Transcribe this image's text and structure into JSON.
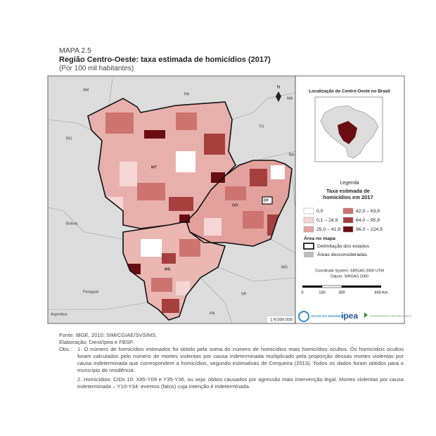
{
  "header": {
    "label": "MAPA 2.5",
    "title": "Região Centro-Oeste: taxa estimada de homicídios (2017)",
    "subtitle": "(Por 100 mil habitantes)"
  },
  "map": {
    "labels": [
      "AM",
      "PA",
      "MA",
      "RO",
      "TO",
      "BA",
      "MT",
      "GO",
      "DF",
      "MS",
      "Bolivia",
      "Paraguai",
      "SP",
      "PR",
      "MG",
      "Argentina"
    ],
    "north": "N",
    "scale": "1:9.000.000"
  },
  "inset": {
    "title": "Localização do Centro-Oeste no Brasil"
  },
  "legend": {
    "title": "Legenda",
    "subtitle": "Taxa estimada de homicídios em 2017",
    "classes": [
      {
        "label": "0,0",
        "color": "#ffffff"
      },
      {
        "label": "0,1 – 24,9",
        "color": "#f6d6d4"
      },
      {
        "label": "25,0 – 41,9",
        "color": "#e6a6a3"
      },
      {
        "label": "42,0 – 63,9",
        "color": "#cd7370"
      },
      {
        "label": "64,0 – 95,9",
        "color": "#a6403f"
      },
      {
        "label": "96,0 – 224,9",
        "color": "#6a0d12"
      }
    ],
    "area_title": "Área no mapa",
    "state_border": "Delimitação dos estados",
    "excluded": "Áreas desconsideradas"
  },
  "projection": {
    "coordinate_system": "Coordinate System: SIRGAS 2000 UTM",
    "datum": "Datum: SIRGAS 2000"
  },
  "scale_bar": [
    "0",
    "150",
    "300",
    "600 Km"
  ],
  "logos": [
    "ATLAS DA VIOLÊNCIA",
    "ipea",
    "FÓRUM BRASILEIRO DE SEGURANÇA PÚBLICA"
  ],
  "footer": {
    "source": "Fonte: IBGE, 2010; SIM/CGIAE/SVS/MS.",
    "credits": "Elaboração: Diest/Ipea e FBSP.",
    "obs_label": "Obs.:",
    "notes": [
      "1. O número de homicídios estimados foi obtido pela soma do número de homicídios mais homicídios ocultos. Os homicídios ocultos foram calculados pelo número de mortes violentas por causa indeterminada multiplicado pela proporção dessas mortes violentas por causa indeterminada que correspondem a homicídios, segundo estimativas de Cerqueira (2013). Todos os dados foram obtidos para o município de residência.",
      "2. Homicídios: CIDs 10: X85-Y09 e Y35-Y36, ou seja: óbitos causados por agressão mais intervenção legal. Mortes violentas por causa indeterminada – Y10-Y34: eventos (fatos) cuja intenção é indeterminada."
    ]
  }
}
